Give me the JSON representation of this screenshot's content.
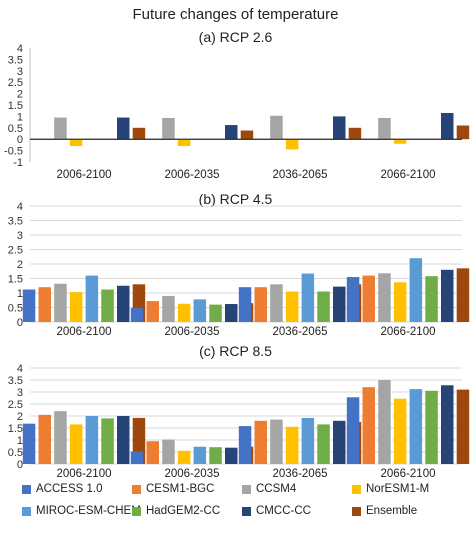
{
  "title": "Future changes of temperature",
  "chart_data": [
    {
      "type": "bar",
      "title": "(a) RCP 2.6",
      "categories": [
        "2006-2100",
        "2006-2035",
        "2036-2065",
        "2066-2100"
      ],
      "ylim": [
        -1,
        4
      ],
      "yticks": [
        "-1",
        "-0.5",
        "0",
        "0.5",
        "1",
        "1.5",
        "2",
        "2.5",
        "3",
        "3.5",
        "4"
      ],
      "grid": false,
      "series": [
        {
          "name": "ACCESS 1.0",
          "values": [
            null,
            null,
            null,
            null
          ]
        },
        {
          "name": "CESM1-BGC",
          "values": [
            null,
            null,
            null,
            null
          ]
        },
        {
          "name": "CCSM4",
          "values": [
            0.95,
            0.93,
            1.03,
            0.93
          ]
        },
        {
          "name": "NorESM1-M",
          "values": [
            -0.3,
            -0.3,
            -0.45,
            -0.2
          ]
        },
        {
          "name": "MIROC-ESM-CHEM",
          "values": [
            null,
            null,
            null,
            null
          ]
        },
        {
          "name": "HadGEM2-CC",
          "values": [
            null,
            null,
            null,
            null
          ]
        },
        {
          "name": "CMCC-CC",
          "values": [
            0.95,
            0.62,
            1.0,
            1.15
          ]
        },
        {
          "name": "Ensemble",
          "values": [
            0.5,
            0.38,
            0.5,
            0.6
          ]
        }
      ]
    },
    {
      "type": "bar",
      "title": "(b) RCP 4.5",
      "categories": [
        "2006-2100",
        "2006-2035",
        "2036-2065",
        "2066-2100"
      ],
      "ylim": [
        0,
        4
      ],
      "yticks": [
        "0",
        "0.5",
        "1",
        "1.5",
        "2",
        "2.5",
        "3",
        "3.5",
        "4"
      ],
      "grid": true,
      "series": [
        {
          "name": "ACCESS 1.0",
          "values": [
            1.12,
            0.48,
            1.2,
            1.55
          ]
        },
        {
          "name": "CESM1-BGC",
          "values": [
            1.2,
            0.72,
            1.2,
            1.6
          ]
        },
        {
          "name": "CCSM4",
          "values": [
            1.32,
            0.9,
            1.3,
            1.68
          ]
        },
        {
          "name": "NorESM1-M",
          "values": [
            1.03,
            0.63,
            1.05,
            1.37
          ]
        },
        {
          "name": "MIROC-ESM-CHEM",
          "values": [
            1.6,
            0.78,
            1.67,
            2.2
          ]
        },
        {
          "name": "HadGEM2-CC",
          "values": [
            1.12,
            0.6,
            1.05,
            1.58
          ]
        },
        {
          "name": "CMCC-CC",
          "values": [
            1.25,
            0.62,
            1.22,
            1.8
          ]
        },
        {
          "name": "Ensemble",
          "values": [
            1.3,
            0.65,
            1.3,
            1.85
          ]
        }
      ]
    },
    {
      "type": "bar",
      "title": "(c) RCP 8.5",
      "categories": [
        "2006-2100",
        "2006-2035",
        "2036-2065",
        "2066-2100"
      ],
      "ylim": [
        0,
        4
      ],
      "yticks": [
        "0",
        "0.5",
        "1",
        "1.5",
        "2",
        "2.5",
        "3",
        "3.5",
        "4"
      ],
      "grid": true,
      "series": [
        {
          "name": "ACCESS 1.0",
          "values": [
            1.68,
            0.52,
            1.58,
            2.78
          ]
        },
        {
          "name": "CESM1-BGC",
          "values": [
            2.05,
            0.95,
            1.8,
            3.2
          ]
        },
        {
          "name": "CCSM4",
          "values": [
            2.2,
            1.02,
            1.85,
            3.5
          ]
        },
        {
          "name": "NorESM1-M",
          "values": [
            1.65,
            0.55,
            1.55,
            2.72
          ]
        },
        {
          "name": "MIROC-ESM-CHEM",
          "values": [
            2.0,
            0.72,
            1.92,
            3.12
          ]
        },
        {
          "name": "HadGEM2-CC",
          "values": [
            1.9,
            0.7,
            1.65,
            3.05
          ]
        },
        {
          "name": "CMCC-CC",
          "values": [
            2.0,
            0.68,
            1.8,
            3.28
          ]
        },
        {
          "name": "Ensemble",
          "values": [
            1.92,
            0.72,
            1.75,
            3.1
          ]
        }
      ]
    }
  ],
  "legend": [
    {
      "name": "ACCESS 1.0",
      "color": "#4472c4"
    },
    {
      "name": "CESM1-BGC",
      "color": "#ed7d31"
    },
    {
      "name": "CCSM4",
      "color": "#a5a5a5"
    },
    {
      "name": "NorESM1-M",
      "color": "#ffc000"
    },
    {
      "name": "MIROC-ESM-CHEM",
      "color": "#5b9bd5"
    },
    {
      "name": "HadGEM2-CC",
      "color": "#70ad47"
    },
    {
      "name": "CMCC-CC",
      "color": "#264478"
    },
    {
      "name": "Ensemble",
      "color": "#9e480e"
    }
  ]
}
